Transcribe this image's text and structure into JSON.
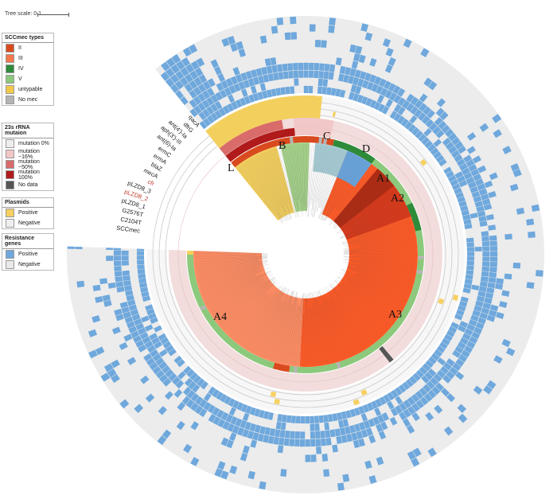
{
  "scale": {
    "label": "Tree scale: 0.1"
  },
  "legends": {
    "scc": {
      "title": "SCCmec types",
      "items": [
        {
          "label": "II",
          "color": "#d94a1e"
        },
        {
          "label": "III",
          "color": "#f4774e"
        },
        {
          "label": "IV",
          "color": "#2e8b3a"
        },
        {
          "label": "V",
          "color": "#8cc97c"
        },
        {
          "label": "untypable",
          "color": "#f2c84a"
        },
        {
          "label": "No mec",
          "color": "#b5b5b5"
        }
      ]
    },
    "rrna": {
      "title": "23s rRNA mutaion",
      "items": [
        {
          "label": "mutation 0%",
          "color": "#eeeeee"
        },
        {
          "label": "mutation ~16%",
          "color": "#f2c7c7"
        },
        {
          "label": "mutation ~50%",
          "color": "#d96b6b"
        },
        {
          "label": "mutation 100%",
          "color": "#b01a1a"
        },
        {
          "label": "No data",
          "color": "#555555"
        }
      ]
    },
    "plasmids": {
      "title": "Plasmids",
      "items": [
        {
          "label": "Positive",
          "color": "#f6d060"
        },
        {
          "label": "Negative",
          "color": "#eeeeee"
        }
      ]
    },
    "resistance": {
      "title": "Resistance genes",
      "items": [
        {
          "label": "Positive",
          "color": "#6fa8dc"
        },
        {
          "label": "Negative",
          "color": "#e9e9e9"
        }
      ]
    }
  },
  "clades": [
    {
      "label": "A1",
      "color": "#b02a12"
    },
    {
      "label": "A2",
      "color": "#d9391a"
    },
    {
      "label": "A3",
      "color": "#ff5a26"
    },
    {
      "label": "A4",
      "color": "#ff8d64"
    },
    {
      "label": "L",
      "color": "#f3cf5e"
    },
    {
      "label": "B",
      "color": "#a6d28b"
    },
    {
      "label": "C",
      "color": "#a8cdd6"
    },
    {
      "label": "D",
      "color": "#6aa5dd"
    }
  ],
  "ring_labels": [
    {
      "text": "qacA",
      "color": "#222222"
    },
    {
      "text": "dfrG",
      "color": "#222222"
    },
    {
      "text": "ant(4')-Ia",
      "color": "#222222"
    },
    {
      "text": "aph(3')-III",
      "color": "#222222"
    },
    {
      "text": "ant(6)-Ia",
      "color": "#222222"
    },
    {
      "text": "ermC",
      "color": "#222222"
    },
    {
      "text": "ermA",
      "color": "#222222"
    },
    {
      "text": "blaZ",
      "color": "#222222"
    },
    {
      "text": "mecA",
      "color": "#222222"
    },
    {
      "text": "cfr",
      "color": "#c0392b"
    },
    {
      "text": "pLZD8_3",
      "color": "#222222"
    },
    {
      "text": "pLZD8_2",
      "color": "#c0392b"
    },
    {
      "text": "pLZD8_1",
      "color": "#222222"
    },
    {
      "text": "G2576T",
      "color": "#222222"
    },
    {
      "text": "C2104T",
      "color": "#222222"
    },
    {
      "text": "SCCmec",
      "color": "#222222"
    }
  ]
}
